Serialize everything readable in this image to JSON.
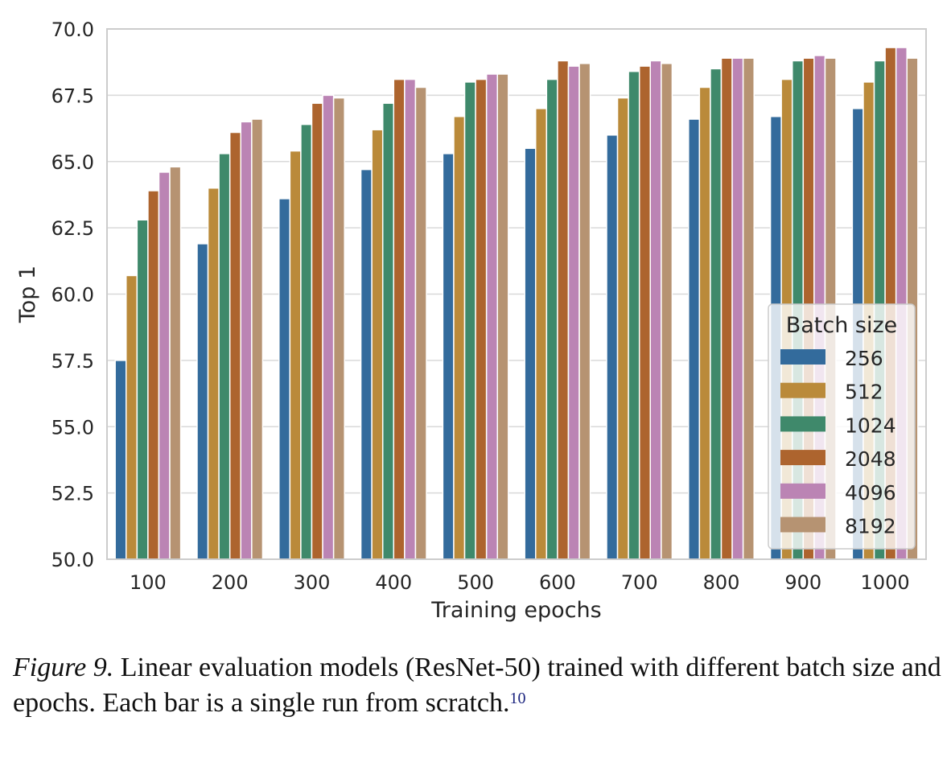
{
  "chart_data": {
    "type": "bar",
    "title": "",
    "xlabel": "Training epochs",
    "ylabel": "Top 1",
    "ylim": [
      50.0,
      70.0
    ],
    "yticks": [
      "50.0",
      "52.5",
      "55.0",
      "57.5",
      "60.0",
      "62.5",
      "65.0",
      "67.5",
      "70.0"
    ],
    "grid": true,
    "categories": [
      "100",
      "200",
      "300",
      "400",
      "500",
      "600",
      "700",
      "800",
      "900",
      "1000"
    ],
    "legend": {
      "title": "Batch size",
      "placement": "lower-right"
    },
    "series": [
      {
        "name": "256",
        "color": "#336b9c",
        "values": [
          57.5,
          61.9,
          63.6,
          64.7,
          65.3,
          65.5,
          66.0,
          66.6,
          66.7,
          67.0
        ]
      },
      {
        "name": "512",
        "color": "#ba8a3a",
        "values": [
          60.7,
          64.0,
          65.4,
          66.2,
          66.7,
          67.0,
          67.4,
          67.8,
          68.1,
          68.0
        ]
      },
      {
        "name": "1024",
        "color": "#3f896b",
        "values": [
          62.8,
          65.3,
          66.4,
          67.2,
          68.0,
          68.1,
          68.4,
          68.5,
          68.8,
          68.8
        ]
      },
      {
        "name": "2048",
        "color": "#ad642e",
        "values": [
          63.9,
          66.1,
          67.2,
          68.1,
          68.1,
          68.8,
          68.6,
          68.9,
          68.9,
          69.3
        ]
      },
      {
        "name": "4096",
        "color": "#bb84b4",
        "values": [
          64.6,
          66.5,
          67.5,
          68.1,
          68.3,
          68.6,
          68.8,
          68.9,
          69.0,
          69.3
        ]
      },
      {
        "name": "8192",
        "color": "#b69372",
        "values": [
          64.8,
          66.6,
          67.4,
          67.8,
          68.3,
          68.7,
          68.7,
          68.9,
          68.9,
          68.9
        ]
      }
    ]
  },
  "caption": {
    "figure_label": "Figure 9.",
    "text": " Linear evaluation models (ResNet-50) trained with different batch size and epochs. Each bar is a single run from scratch.",
    "footnote": "10"
  }
}
